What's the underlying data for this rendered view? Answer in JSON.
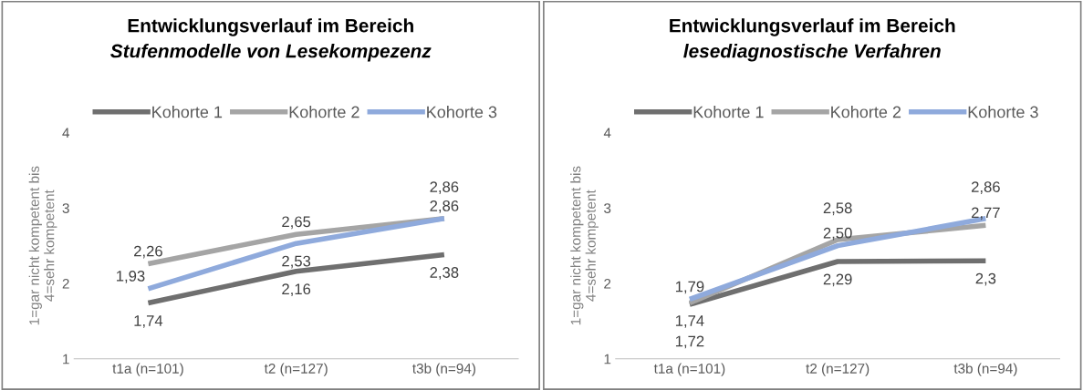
{
  "chart_data": [
    {
      "type": "line",
      "title": "Entwicklungsverlauf im Bereich",
      "subtitle": "Stufenmodelle von Lesekompezenz",
      "ylabel": "1=gar nicht kompetent bis\n4=sehr kompetent",
      "categories": [
        "t1a (n=101)",
        "t2 (n=127)",
        "t3b (n=94)"
      ],
      "ylim": [
        1,
        4
      ],
      "yticks": [
        1,
        2,
        3,
        4
      ],
      "grid": false,
      "legend": "top",
      "marker": "none",
      "series": [
        {
          "name": "Kohorte 1",
          "color": "#6f6f6f",
          "values": [
            1.74,
            2.16,
            2.38
          ],
          "value_labels": [
            "1,74",
            "2,16",
            "2,38"
          ]
        },
        {
          "name": "Kohorte 2",
          "color": "#a5a5a5",
          "values": [
            2.26,
            2.65,
            2.86
          ],
          "value_labels": [
            "2,26",
            "2,65",
            "2,86"
          ]
        },
        {
          "name": "Kohorte 3",
          "color": "#8faadc",
          "values": [
            1.93,
            2.53,
            2.86
          ],
          "value_labels": [
            "1,93",
            "2,53",
            "2,86"
          ]
        }
      ]
    },
    {
      "type": "line",
      "title": "Entwicklungsverlauf im Bereich",
      "subtitle": "lesediagnostische Verfahren",
      "ylabel": "1=gar nicht kompetent bis\n4=sehr kompetent",
      "categories": [
        "t1a (n=101)",
        "t2 (n=127)",
        "t3b (n=94)"
      ],
      "ylim": [
        1,
        4
      ],
      "yticks": [
        1,
        2,
        3,
        4
      ],
      "grid": false,
      "legend": "top",
      "marker": "none",
      "series": [
        {
          "name": "Kohorte 1",
          "color": "#6f6f6f",
          "values": [
            1.72,
            2.29,
            2.3
          ],
          "value_labels": [
            "1,72",
            "2,29",
            "2,3"
          ]
        },
        {
          "name": "Kohorte 2",
          "color": "#a5a5a5",
          "values": [
            1.74,
            2.58,
            2.77
          ],
          "value_labels": [
            "1,74",
            "2,58",
            "2,77"
          ]
        },
        {
          "name": "Kohorte 3",
          "color": "#8faadc",
          "values": [
            1.79,
            2.5,
            2.86
          ],
          "value_labels": [
            "1,79",
            "2,50",
            "2,86"
          ]
        }
      ]
    }
  ]
}
